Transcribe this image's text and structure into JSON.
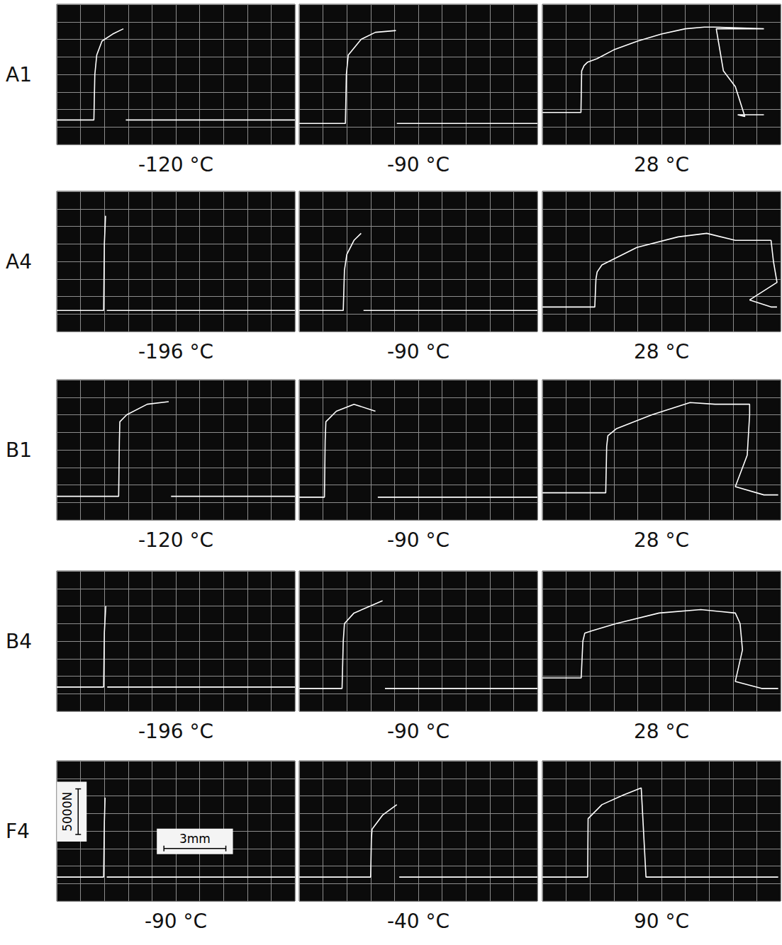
{
  "row_labels": [
    "A1",
    "A4",
    "B1",
    "B4",
    "F4"
  ],
  "chart_data": [
    {
      "type": "line",
      "title": "-120 °C",
      "xlim": [
        0,
        10
      ],
      "ylim": [
        0,
        8
      ],
      "xticks": [
        0,
        1,
        2,
        3,
        4,
        5,
        6,
        7,
        8,
        9,
        10
      ],
      "yticks": [
        0,
        1,
        2,
        3,
        4,
        5,
        6,
        7,
        8
      ],
      "grid": true,
      "tick_labels": false,
      "color": "#ffffff",
      "x": [
        0,
        1.56,
        1.6,
        1.68,
        1.9,
        2.35,
        2.8,
        2.85,
        2.9,
        10
      ],
      "values": [
        1.4,
        1.4,
        4.0,
        5.1,
        5.9,
        6.3,
        6.6,
        null,
        1.4,
        1.4
      ]
    },
    {
      "type": "line",
      "title": "-90 °C",
      "xlim": [
        0,
        10
      ],
      "ylim": [
        0,
        8
      ],
      "xticks": [
        0,
        1,
        2,
        3,
        4,
        5,
        6,
        7,
        8,
        9,
        10
      ],
      "yticks": [
        0,
        1,
        2,
        3,
        4,
        5,
        6,
        7,
        8
      ],
      "grid": true,
      "tick_labels": false,
      "color": "#ffffff",
      "x": [
        0,
        1.94,
        1.98,
        2.06,
        2.6,
        3.2,
        4.06,
        4.08,
        4.1,
        10
      ],
      "values": [
        1.2,
        1.2,
        4.0,
        5.1,
        6.0,
        6.4,
        6.5,
        null,
        1.2,
        1.2
      ]
    },
    {
      "type": "line",
      "title": "28 °C",
      "xlim": [
        0,
        10
      ],
      "ylim": [
        0,
        8
      ],
      "xticks": [
        0,
        1,
        2,
        3,
        4,
        5,
        6,
        7,
        8,
        9,
        10
      ],
      "yticks": [
        0,
        1,
        2,
        3,
        4,
        5,
        6,
        7,
        8
      ],
      "grid": true,
      "tick_labels": false,
      "color": "#ffffff",
      "x": [
        0,
        1.62,
        1.65,
        1.75,
        1.9,
        2.3,
        3.0,
        4.0,
        5.0,
        6.0,
        6.8,
        7.2,
        9.3,
        7.3,
        7.6,
        8.1,
        8.5,
        8.2,
        9.3
      ],
      "values": [
        1.83,
        1.83,
        4.2,
        4.5,
        4.7,
        4.9,
        5.4,
        5.9,
        6.3,
        6.6,
        6.7,
        6.7,
        6.6,
        6.6,
        4.2,
        3.3,
        1.6,
        1.7,
        1.7
      ]
    },
    {
      "type": "line",
      "title": "-196 °C",
      "xlim": [
        0,
        10
      ],
      "ylim": [
        0,
        8
      ],
      "xticks": [
        0,
        1,
        2,
        3,
        4,
        5,
        6,
        7,
        8,
        9,
        10
      ],
      "yticks": [
        0,
        1,
        2,
        3,
        4,
        5,
        6,
        7,
        8
      ],
      "grid": true,
      "tick_labels": false,
      "color": "#ffffff",
      "x": [
        0,
        1.97,
        2.0,
        2.05,
        2.08,
        2.1,
        10
      ],
      "values": [
        1.2,
        1.2,
        5.0,
        6.6,
        null,
        1.2,
        1.2
      ]
    },
    {
      "type": "line",
      "title": "-90 °C",
      "xlim": [
        0,
        10
      ],
      "ylim": [
        0,
        8
      ],
      "xticks": [
        0,
        1,
        2,
        3,
        4,
        5,
        6,
        7,
        8,
        9,
        10
      ],
      "yticks": [
        0,
        1,
        2,
        3,
        4,
        5,
        6,
        7,
        8
      ],
      "grid": true,
      "tick_labels": false,
      "color": "#ffffff",
      "x": [
        0,
        1.85,
        1.9,
        2.0,
        2.3,
        2.6,
        2.65,
        2.7,
        10
      ],
      "values": [
        1.2,
        1.2,
        3.5,
        4.4,
        5.2,
        5.6,
        null,
        1.2,
        1.2
      ]
    },
    {
      "type": "line",
      "title": "28 °C",
      "xlim": [
        0,
        10
      ],
      "ylim": [
        0,
        8
      ],
      "xticks": [
        0,
        1,
        2,
        3,
        4,
        5,
        6,
        7,
        8,
        9,
        10
      ],
      "yticks": [
        0,
        1,
        2,
        3,
        4,
        5,
        6,
        7,
        8
      ],
      "grid": true,
      "tick_labels": false,
      "color": "#ffffff",
      "x": [
        0,
        2.2,
        2.25,
        2.3,
        2.5,
        3.97,
        5.7,
        6.9,
        8.1,
        9.6,
        9.7,
        9.85,
        8.7,
        9.6,
        9.85
      ],
      "values": [
        1.4,
        1.4,
        3.0,
        3.4,
        3.8,
        4.8,
        5.4,
        5.6,
        5.2,
        5.2,
        4.0,
        2.8,
        1.8,
        1.4,
        1.4
      ]
    },
    {
      "type": "line",
      "title": "-120 °C",
      "xlim": [
        0,
        10
      ],
      "ylim": [
        0,
        8
      ],
      "xticks": [
        0,
        1,
        2,
        3,
        4,
        5,
        6,
        7,
        8,
        9,
        10
      ],
      "yticks": [
        0,
        1,
        2,
        3,
        4,
        5,
        6,
        7,
        8
      ],
      "grid": true,
      "tick_labels": false,
      "color": "#ffffff",
      "x": [
        0,
        2.6,
        2.63,
        2.65,
        2.94,
        3.8,
        4.7,
        4.75,
        4.8,
        10
      ],
      "values": [
        1.35,
        1.35,
        4.5,
        5.6,
        6.0,
        6.6,
        6.75,
        null,
        1.35,
        1.35
      ]
    },
    {
      "type": "line",
      "title": "-90 °C",
      "xlim": [
        0,
        10
      ],
      "ylim": [
        0,
        8
      ],
      "xticks": [
        0,
        1,
        2,
        3,
        4,
        5,
        6,
        7,
        8,
        9,
        10
      ],
      "yticks": [
        0,
        1,
        2,
        3,
        4,
        5,
        6,
        7,
        8
      ],
      "grid": true,
      "tick_labels": false,
      "color": "#ffffff",
      "x": [
        0,
        1.06,
        1.09,
        1.12,
        1.56,
        2.3,
        3.2,
        3.25,
        3.3,
        10
      ],
      "values": [
        1.3,
        1.3,
        4.5,
        5.6,
        6.2,
        6.6,
        6.2,
        null,
        1.3,
        1.3
      ]
    },
    {
      "type": "line",
      "title": "28 °C",
      "xlim": [
        0,
        10
      ],
      "ylim": [
        0,
        8
      ],
      "xticks": [
        0,
        1,
        2,
        3,
        4,
        5,
        6,
        7,
        8,
        9,
        10
      ],
      "yticks": [
        0,
        1,
        2,
        3,
        4,
        5,
        6,
        7,
        8
      ],
      "grid": true,
      "tick_labels": false,
      "color": "#ffffff",
      "x": [
        0,
        2.66,
        2.7,
        2.75,
        3.1,
        4.6,
        6.2,
        7.25,
        8.7,
        8.7,
        8.6,
        8.1,
        9.3,
        9.9
      ],
      "values": [
        1.55,
        1.55,
        4.2,
        4.8,
        5.2,
        6.0,
        6.7,
        6.6,
        6.6,
        6.0,
        3.7,
        1.9,
        1.43,
        1.43
      ]
    },
    {
      "type": "line",
      "title": "-196 °C",
      "xlim": [
        0,
        10
      ],
      "ylim": [
        0,
        8
      ],
      "xticks": [
        0,
        1,
        2,
        3,
        4,
        5,
        6,
        7,
        8,
        9,
        10
      ],
      "yticks": [
        0,
        1,
        2,
        3,
        4,
        5,
        6,
        7,
        8
      ],
      "grid": true,
      "tick_labels": false,
      "color": "#ffffff",
      "x": [
        0,
        1.97,
        2.0,
        2.06,
        2.09,
        2.12,
        10
      ],
      "values": [
        1.38,
        1.38,
        4.5,
        6.0,
        null,
        1.38,
        1.38
      ]
    },
    {
      "type": "line",
      "title": "-90 °C",
      "xlim": [
        0,
        10
      ],
      "ylim": [
        0,
        8
      ],
      "xticks": [
        0,
        1,
        2,
        3,
        4,
        5,
        6,
        7,
        8,
        9,
        10
      ],
      "yticks": [
        0,
        1,
        2,
        3,
        4,
        5,
        6,
        7,
        8
      ],
      "grid": true,
      "tick_labels": false,
      "color": "#ffffff",
      "x": [
        0,
        1.8,
        1.85,
        1.9,
        2.3,
        3.5,
        3.55,
        3.6,
        10
      ],
      "values": [
        1.3,
        1.3,
        4.0,
        5.0,
        5.6,
        6.3,
        null,
        1.3,
        1.3
      ]
    },
    {
      "type": "line",
      "title": "28 °C",
      "xlim": [
        0,
        10
      ],
      "ylim": [
        0,
        8
      ],
      "xticks": [
        0,
        1,
        2,
        3,
        4,
        5,
        6,
        7,
        8,
        9,
        10
      ],
      "yticks": [
        0,
        1,
        2,
        3,
        4,
        5,
        6,
        7,
        8
      ],
      "grid": true,
      "tick_labels": false,
      "color": "#ffffff",
      "x": [
        0,
        1.63,
        1.7,
        1.78,
        2.1,
        3.1,
        4.9,
        6.65,
        8.1,
        8.3,
        8.4,
        8.1,
        9.2,
        9.9
      ],
      "values": [
        1.9,
        1.9,
        4.0,
        4.45,
        4.6,
        5.0,
        5.6,
        5.8,
        5.6,
        5.0,
        3.5,
        1.7,
        1.3,
        1.3
      ]
    },
    {
      "type": "line",
      "title": "-90 °C",
      "xlim": [
        0,
        10
      ],
      "ylim": [
        0,
        8
      ],
      "xticks": [
        0,
        1,
        2,
        3,
        4,
        5,
        6,
        7,
        8,
        9,
        10
      ],
      "yticks": [
        0,
        1,
        2,
        3,
        4,
        5,
        6,
        7,
        8
      ],
      "grid": true,
      "tick_labels": false,
      "color": "#ffffff",
      "x": [
        0,
        1.97,
        2.0,
        2.03,
        2.06,
        2.1,
        10
      ],
      "values": [
        1.37,
        1.37,
        4.5,
        5.9,
        null,
        1.37,
        1.37
      ],
      "annotations": [
        {
          "text": "5000N",
          "axis": "y",
          "length": 2.6
        },
        {
          "text": "3mm",
          "axis": "x",
          "length": 2.6
        }
      ]
    },
    {
      "type": "line",
      "title": "-40 °C",
      "xlim": [
        0,
        10
      ],
      "ylim": [
        0,
        8
      ],
      "xticks": [
        0,
        1,
        2,
        3,
        4,
        5,
        6,
        7,
        8,
        9,
        10
      ],
      "yticks": [
        0,
        1,
        2,
        3,
        4,
        5,
        6,
        7,
        8
      ],
      "grid": true,
      "tick_labels": false,
      "color": "#ffffff",
      "x": [
        0,
        3.0,
        3.03,
        3.06,
        3.5,
        4.1,
        4.15,
        4.2,
        10
      ],
      "values": [
        1.37,
        1.37,
        3.5,
        4.1,
        4.9,
        5.5,
        null,
        1.37,
        1.37
      ]
    },
    {
      "type": "line",
      "title": "90 °C",
      "xlim": [
        0,
        10
      ],
      "ylim": [
        0,
        8
      ],
      "xticks": [
        0,
        1,
        2,
        3,
        4,
        5,
        6,
        7,
        8,
        9,
        10
      ],
      "yticks": [
        0,
        1,
        2,
        3,
        4,
        5,
        6,
        7,
        8
      ],
      "grid": true,
      "tick_labels": false,
      "color": "#ffffff",
      "x": [
        0,
        1.9,
        1.92,
        2.5,
        3.4,
        4.15,
        4.35,
        9.9
      ],
      "values": [
        1.37,
        1.37,
        4.7,
        5.5,
        6.05,
        6.45,
        1.37,
        1.37
      ]
    }
  ]
}
